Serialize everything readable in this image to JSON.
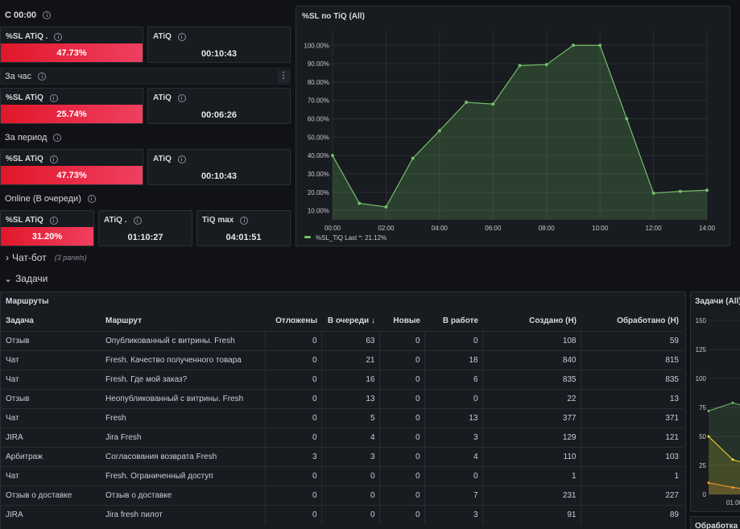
{
  "sections": {
    "since_midnight": "С 00:00",
    "per_hour": "За час",
    "per_period": "За период",
    "online": "Online (В очереди)"
  },
  "stats": {
    "s1_sl_title": "%SL ATiQ .",
    "s1_sl_value": "47.73%",
    "s1_atiq_title": "ATiQ",
    "s1_atiq_value": "00:10:43",
    "s2_sl_title": "%SL ATiQ",
    "s2_sl_value": "25.74%",
    "s2_atiq_title": "ATiQ",
    "s2_atiq_value": "00:06:26",
    "s3_sl_title": "%SL ATiQ",
    "s3_sl_value": "47.73%",
    "s3_atiq_title": "ATiQ",
    "s3_atiq_value": "00:10:43",
    "s4_sl_title": "%SL ATiQ",
    "s4_sl_value": "31.20%",
    "s4_atiq_title": "ATiQ .",
    "s4_atiq_value": "01:10:27",
    "s4_tiq_title": "TiQ max",
    "s4_tiq_value": "04:01:51"
  },
  "kebab_symbol": "⋮",
  "rows": {
    "chatbot_chevron": "›",
    "chatbot": "Чат-бот",
    "chatbot_count": "(3 panels)",
    "tasks_chevron": "⌄",
    "tasks": "Задачи"
  },
  "chart_data": [
    {
      "type": "area",
      "title": "%SL по TiQ (All)",
      "x": [
        "00:00",
        "01:00",
        "02:00",
        "03:00",
        "04:00",
        "05:00",
        "06:00",
        "07:00",
        "08:00",
        "09:00",
        "10:00",
        "11:00",
        "12:00",
        "13:00",
        "14:00"
      ],
      "x_ticks": [
        "00:00",
        "02:00",
        "04:00",
        "06:00",
        "08:00",
        "10:00",
        "12:00",
        "14:00"
      ],
      "y_ticks": [
        "10.00%",
        "20.00%",
        "30.00%",
        "40.00%",
        "50.00%",
        "60.00%",
        "70.00%",
        "80.00%",
        "90.00%",
        "100.00%"
      ],
      "ylim": [
        5,
        108
      ],
      "series": [
        {
          "name": "%SL_TiQ",
          "values": [
            40,
            14,
            12,
            38.5,
            53.5,
            69,
            68,
            89,
            89.5,
            100,
            100,
            60,
            19.5,
            20.5,
            21.12
          ],
          "color": "#73bf69"
        }
      ],
      "legend": "bottom-left",
      "legend_last_label": "Last *: 21.12%",
      "grid": true
    },
    {
      "type": "line",
      "title": "Задачи (All)",
      "y_ticks": [
        "0",
        "25",
        "50",
        "75",
        "100",
        "125",
        "150"
      ],
      "ylim": [
        0,
        150
      ],
      "x_ticks": [
        "01:00"
      ],
      "series": [
        {
          "values": [
            72,
            79,
            74
          ],
          "color": "#73bf69"
        },
        {
          "values": [
            50,
            30,
            25
          ],
          "color": "#fade2a"
        },
        {
          "values": [
            10,
            6,
            4
          ],
          "color": "#ff9830"
        }
      ]
    }
  ],
  "routes": {
    "title": "Маршруты",
    "columns": [
      "Задача",
      "Маршрут",
      "Отложены",
      "В очереди",
      "Новые",
      "В работе",
      "Создано (Н)",
      "Обработано (Н)"
    ],
    "sort_arrow": "↓",
    "rows": [
      [
        "Отзыв",
        "Опубликованный с витрины. Fresh",
        "0",
        "63",
        "0",
        "0",
        "108",
        "59"
      ],
      [
        "Чат",
        "Fresh. Качество полученного товара",
        "0",
        "21",
        "0",
        "18",
        "840",
        "815"
      ],
      [
        "Чат",
        "Fresh. Где мой заказ?",
        "0",
        "16",
        "0",
        "6",
        "835",
        "835"
      ],
      [
        "Отзыв",
        "Неопубликованный с витрины. Fresh",
        "0",
        "13",
        "0",
        "0",
        "22",
        "13"
      ],
      [
        "Чат",
        "Fresh",
        "0",
        "5",
        "0",
        "13",
        "377",
        "371"
      ],
      [
        "JIRA",
        "Jira Fresh",
        "0",
        "4",
        "0",
        "3",
        "129",
        "121"
      ],
      [
        "Арбитраж",
        "Согласования возврата Fresh",
        "3",
        "3",
        "0",
        "4",
        "110",
        "103"
      ],
      [
        "Чат",
        "Fresh. Ограниченный доступ",
        "0",
        "0",
        "0",
        "0",
        "1",
        "1"
      ],
      [
        "Отзыв о доставке",
        "Отзыв о доставке",
        "0",
        "0",
        "0",
        "7",
        "231",
        "227"
      ],
      [
        "JIRA",
        "Jira fresh пилот",
        "0",
        "0",
        "0",
        "3",
        "91",
        "89"
      ]
    ]
  },
  "bottom_panel_title": "Обработка ч"
}
